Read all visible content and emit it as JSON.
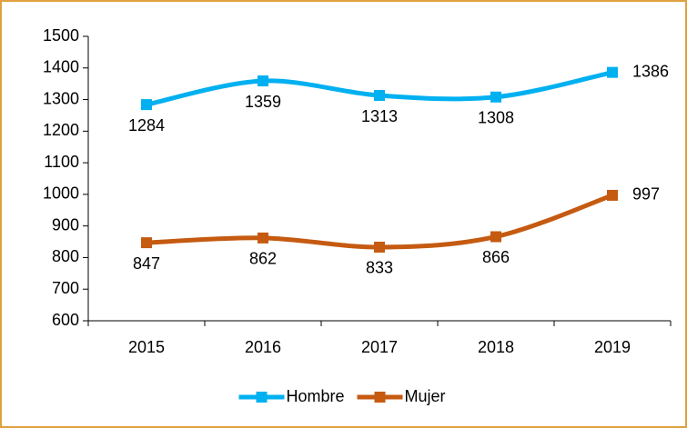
{
  "chart_data": {
    "type": "line",
    "smooth": true,
    "categories": [
      "2015",
      "2016",
      "2017",
      "2018",
      "2019"
    ],
    "series": [
      {
        "name": "Hombre",
        "color": "#00B0F0",
        "values": [
          1284,
          1359,
          1313,
          1308,
          1386
        ]
      },
      {
        "name": "Mujer",
        "color": "#C55A11",
        "values": [
          847,
          862,
          833,
          866,
          997
        ]
      }
    ],
    "ylim": [
      600,
      1500
    ],
    "yticks": [
      600,
      700,
      800,
      900,
      1000,
      1100,
      1200,
      1300,
      1400,
      1500
    ],
    "grid": false,
    "legend": "bottom"
  }
}
